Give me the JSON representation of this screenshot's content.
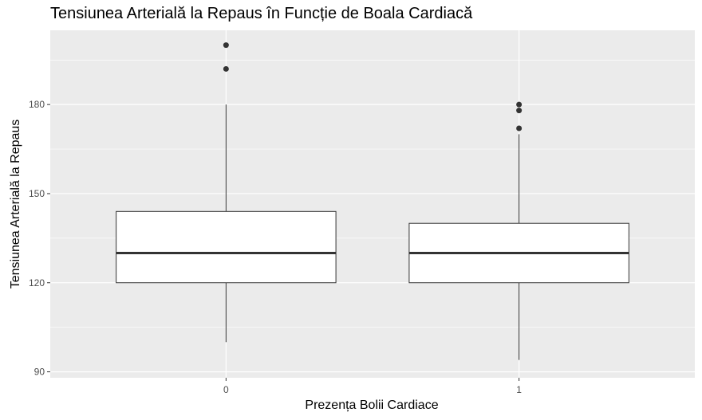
{
  "chart_data": {
    "type": "boxplot",
    "title": "Tensiunea Arterială la Repaus în Funcție de Boala Cardiacă",
    "xlabel": "Prezența Bolii Cardiace",
    "ylabel": "Tensiunea Arterială la Repaus",
    "categories": [
      "0",
      "1"
    ],
    "ylim": [
      88,
      205
    ],
    "y_ticks": [
      90,
      120,
      150,
      180
    ],
    "grid": true,
    "boxes": [
      {
        "category": "0",
        "whisker_low": 100,
        "q1": 120,
        "median": 130,
        "q3": 144,
        "whisker_high": 180,
        "outliers": [
          192,
          200
        ]
      },
      {
        "category": "1",
        "whisker_low": 94,
        "q1": 120,
        "median": 130,
        "q3": 140,
        "whisker_high": 170,
        "outliers": [
          172,
          178,
          180
        ]
      }
    ],
    "colors": {
      "panel": "#ebebeb",
      "grid": "#ffffff",
      "box_fill": "#ffffff",
      "box_stroke": "#333333",
      "outlier": "#333333"
    }
  }
}
